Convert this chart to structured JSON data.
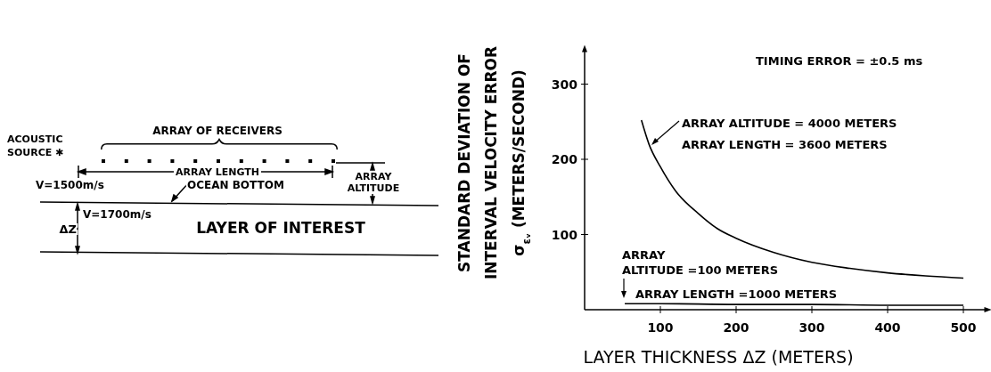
{
  "chart_data": [
    {
      "type": "other",
      "annotations": [
        "ACOUSTIC",
        "SOURCE ✱",
        "ARRAY OF RECEIVERS",
        "ARRAY LENGTH",
        "ARRAY",
        "ALTITUDE",
        "V=1500m/s",
        "OCEAN BOTTOM",
        "V=1700m/s",
        "ΔZ",
        "LAYER OF INTEREST"
      ]
    },
    {
      "type": "line",
      "xlabel": "LAYER THICKNESS ΔZ (METERS)",
      "ylabel": "STANDARD DEVIATION OF\nINTERVAL VELOCITY ERROR\nσ$_{εᵥ}$ (METERS/SECOND)",
      "xlim": [
        0,
        530
      ],
      "ylim": [
        0,
        345
      ],
      "xticks": [
        100,
        200,
        300,
        400,
        500
      ],
      "yticks": [
        100,
        200,
        300
      ],
      "series": [
        {
          "color": "#000000",
          "x": [
            75,
            85,
            100,
            120,
            150,
            175,
            200,
            250,
            300,
            350,
            400,
            450,
            500
          ],
          "values": [
            252,
            220,
            190,
            158,
            128,
            108,
            95,
            76,
            63,
            55,
            49,
            45,
            42
          ]
        },
        {
          "color": "#000000",
          "x": [
            53,
            100,
            200,
            300,
            400,
            500
          ],
          "values": [
            8,
            8,
            7,
            7,
            6,
            6
          ]
        }
      ],
      "annotations": [
        "TIMING ERROR = ±0.5 ms",
        "ARRAY ALTITUDE = 4000 METERS",
        "ARRAY LENGTH = 3600 METERS",
        "ARRAY",
        "ALTITUDE =100 METERS",
        "ARRAY LENGTH =1000 METERS"
      ]
    }
  ]
}
